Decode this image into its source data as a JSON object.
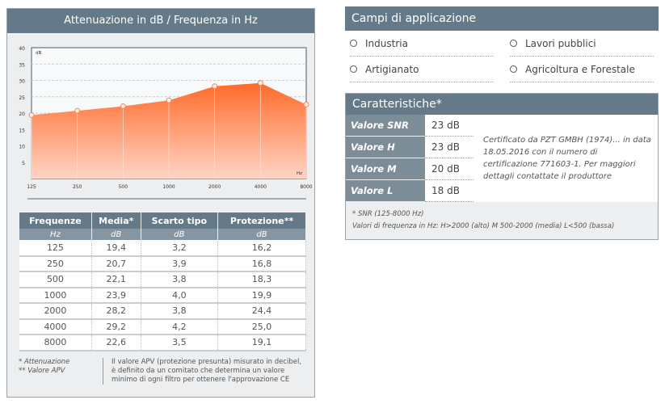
{
  "chart_panel": {
    "title": "Attenuazione in dB / Frequenza in Hz"
  },
  "chart_data": {
    "type": "area",
    "categories": [
      "125",
      "250",
      "500",
      "1000",
      "2000",
      "4000",
      "8000"
    ],
    "values": [
      19.4,
      20.7,
      22.1,
      23.9,
      28.2,
      29.2,
      22.6
    ],
    "ylim": [
      0,
      40
    ],
    "yticks": [
      5,
      10,
      15,
      20,
      25,
      30,
      35,
      40
    ],
    "ylabel": "dB",
    "xlabel": "Hz",
    "grid": true,
    "color": "#ff6a2a"
  },
  "table": {
    "headers": [
      "Frequenze",
      "Media*",
      "Scarto tipo",
      "Protezione**"
    ],
    "units": [
      "Hz",
      "dB",
      "dB",
      "dB"
    ],
    "rows": [
      [
        "125",
        "19,4",
        "3,2",
        "16,2"
      ],
      [
        "250",
        "20,7",
        "3,9",
        "16,8"
      ],
      [
        "500",
        "22,1",
        "3,8",
        "18,3"
      ],
      [
        "1000",
        "23,9",
        "4,0",
        "19,9"
      ],
      [
        "2000",
        "28,2",
        "3,8",
        "24,4"
      ],
      [
        "4000",
        "29,2",
        "4,2",
        "25,0"
      ],
      [
        "8000",
        "22,6",
        "3,5",
        "19,1"
      ]
    ]
  },
  "footnotes": {
    "star1": "* Attenuazione",
    "star2": "** Valore APV",
    "apv": "Il valore APV (protezione presunta) misurato in decibel, è definito da un comitato che determina un valore minimo di ogni filtro per ottenere l'approvazione CE"
  },
  "campi": {
    "title": "Campi di applicazione",
    "items": [
      "Industria",
      "Lavori pubblici",
      "Artigianato",
      "Agricoltura e Forestale"
    ]
  },
  "caratteristiche": {
    "title": "Caratteristiche*",
    "rows": [
      {
        "label": "Valore SNR",
        "value": "23 dB"
      },
      {
        "label": "Valore H",
        "value": "23 dB"
      },
      {
        "label": "Valore M",
        "value": "20 dB"
      },
      {
        "label": "Valore L",
        "value": "18 dB"
      }
    ],
    "cert": "Certificato da PZT GMBH (1974)... in data 18.05.2016 con il numero di certificazione 771603-1. Per maggiori dettagli contattate il produttore",
    "foot1": "* SNR (125-8000 Hz)",
    "foot2": "Valori di frequenza in Hz: H>2000 (alto)   M 500-2000 (media)   L<500 (bassa)"
  }
}
